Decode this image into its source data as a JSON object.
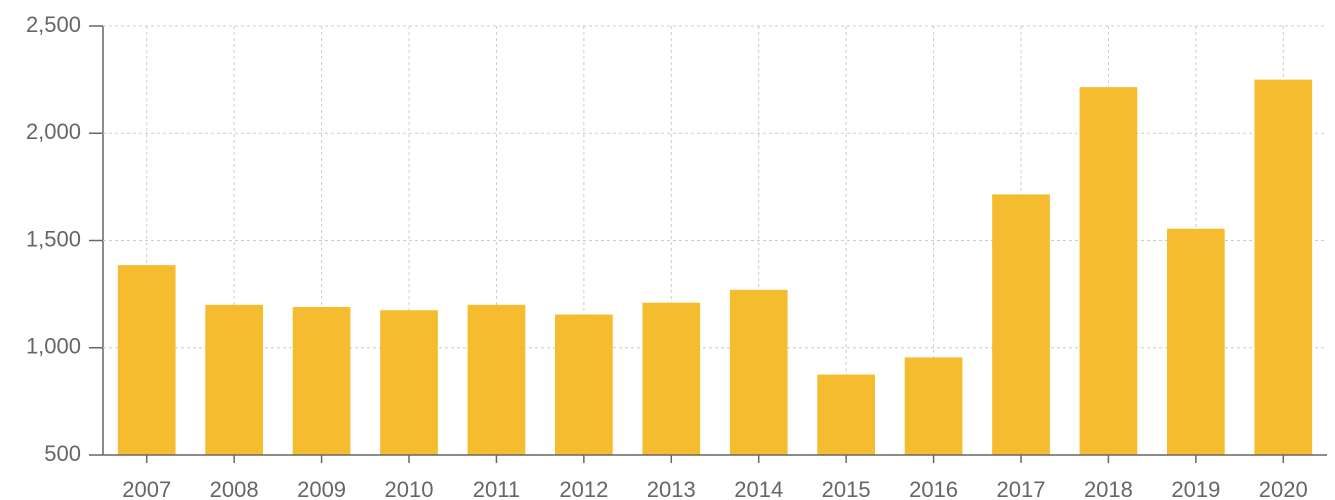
{
  "chart_data": {
    "type": "bar",
    "categories": [
      "2007",
      "2008",
      "2009",
      "2010",
      "2011",
      "2012",
      "2013",
      "2014",
      "2015",
      "2016",
      "2017",
      "2018",
      "2019",
      "2020"
    ],
    "values": [
      1385,
      1200,
      1190,
      1175,
      1200,
      1155,
      1210,
      1270,
      875,
      955,
      1715,
      2215,
      1555,
      2250
    ],
    "color": "#f6bc2f",
    "ylim": [
      500,
      2500
    ],
    "yticks": [
      500,
      {
        "value": 1000,
        "label": "1,000"
      },
      {
        "value": 1500,
        "label": "1,500"
      },
      {
        "value": 2000,
        "label": "2,000"
      },
      {
        "value": 2500,
        "label": "2,500"
      }
    ],
    "grid": true
  }
}
